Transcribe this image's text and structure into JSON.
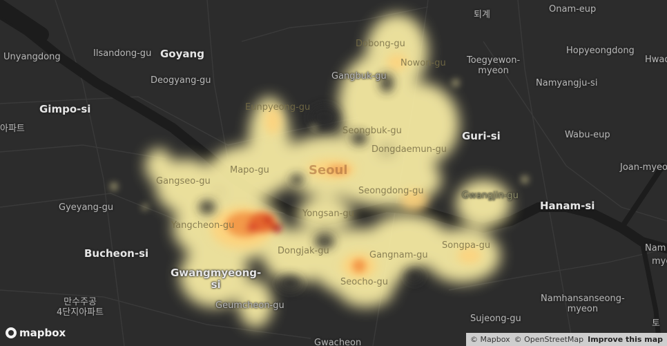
{
  "map": {
    "theme": "dark",
    "heat_colors": [
      "#fff3a8",
      "#ffd27a",
      "#f39a4a",
      "#d9432b",
      "#b00016"
    ]
  },
  "labels": {
    "onam": "Onam-eup",
    "toegye_kr": "퇴계",
    "unyangdong": "Unyangdong",
    "ilsandong": "Ilsandong-gu",
    "goyang": "Goyang",
    "deogyang": "Deogyang-gu",
    "dobong": "Dobong-gu",
    "nowon": "Nowon-gu",
    "toegyewon": "Toegyewon-\nmyeon",
    "hopyeong": "Hopyeongdong",
    "hwado": "Hwad",
    "gangbuk": "Gangbuk-gu",
    "namyangju": "Namyangju-si",
    "gimpo": "Gimpo-si",
    "apt_left": "아파트",
    "eunpyeong": "Eunpyeong-gu",
    "seongbuk": "Seongbuk-gu",
    "guri": "Guri-si",
    "wabu": "Wabu-eup",
    "dongdaemun": "Dongdaemun-gu",
    "seoul": "Seoul",
    "mapo": "Mapo-gu",
    "gangseo": "Gangseo-gu",
    "seongdong": "Seongdong-gu",
    "gwangjin": "Gwangjin-gu",
    "joan": "Joan-myeo",
    "hanam": "Hanam-si",
    "gyeyang": "Gyeyang-gu",
    "yangcheon": "Yangcheon-gu",
    "yongsan": "Yongsan-gu",
    "songpa": "Songpa-gu",
    "bucheon": "Bucheon-si",
    "dongjak": "Dongjak-gu",
    "gangnam": "Gangnam-gu",
    "nam": "Nam",
    "myeon_right": "mye",
    "gwangmyeong": "Gwangmyeong-\nsi",
    "seocho": "Seocho-gu",
    "sujeong_kr": "만수주공\n4단지아파트",
    "geumcheon": "Geumcheon-gu",
    "namhansanseong": "Namhansanseong-\nmyeon",
    "sujeong": "Sujeong-gu",
    "to_kr": "토",
    "gwacheon": "Gwacheon"
  },
  "logo": {
    "text": "mapbox"
  },
  "attribution": {
    "mapbox": "© Mapbox",
    "osm": "© OpenStreetMap",
    "improve": "Improve this map"
  }
}
